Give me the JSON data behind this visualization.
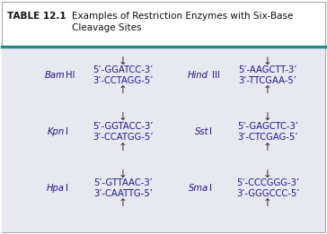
{
  "title_bold": "TABLE 12.1",
  "title_rest": "Examples of Restriction Enzymes with Six-Base",
  "title_line2": "Cleavage Sites",
  "header_bg": "#ffffff",
  "body_bg": "#e8e8f0",
  "border_color": "#2a8a8a",
  "seq_color": "#1a1a8a",
  "name_color": "#1a1a8a",
  "arrow_color": "#333333",
  "entries": [
    {
      "name_italic": "Bam",
      "name_plain": "HI",
      "top_seq": "5’-GGATCC-3’",
      "bot_seq": "3’-CCTAGG-5’",
      "col": 0,
      "row": 0
    },
    {
      "name_italic": "Hind",
      "name_plain": " III",
      "top_seq": "5’-AAGCTT-3’",
      "bot_seq": "3’-TTCGAA-5’",
      "col": 1,
      "row": 0
    },
    {
      "name_italic": "Kpn",
      "name_plain": "I",
      "top_seq": "5’-GGTACC-3’",
      "bot_seq": "3’-CCATGG-5’",
      "col": 0,
      "row": 1
    },
    {
      "name_italic": "Sst",
      "name_plain": "I",
      "top_seq": "5’-GAGCTC-3’",
      "bot_seq": "3’-CTCGAG-5’",
      "col": 1,
      "row": 1
    },
    {
      "name_italic": "Hpa",
      "name_plain": "I",
      "top_seq": "5’-GTTAAC-3’",
      "bot_seq": "3’-CAATTG-5’",
      "col": 0,
      "row": 2
    },
    {
      "name_italic": "Sma",
      "name_plain": "I",
      "top_seq": "5’-CCCGGG-3’",
      "bot_seq": "3’-GGGCCC-5’",
      "col": 1,
      "row": 2
    }
  ],
  "down_arrow": "↓",
  "up_arrow": "↑"
}
